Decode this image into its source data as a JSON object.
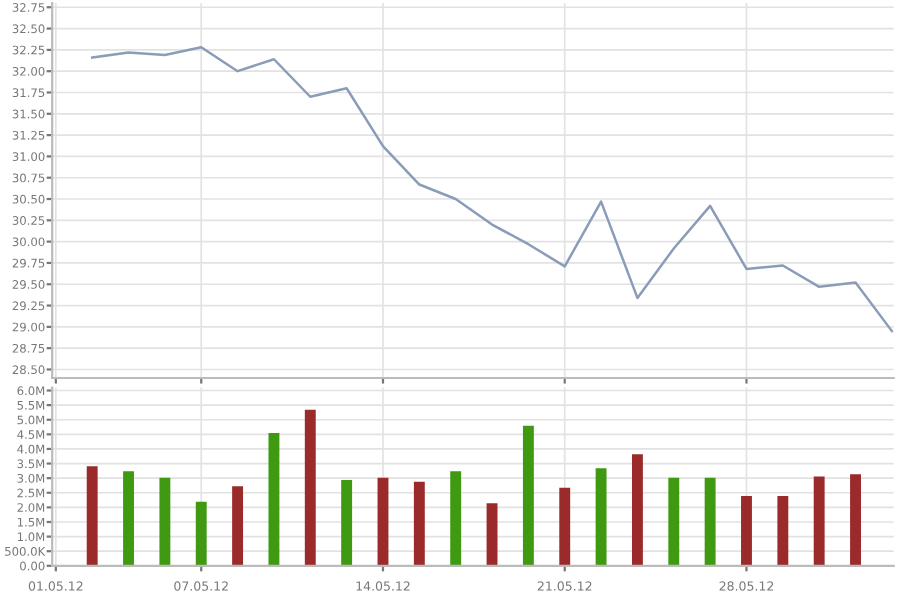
{
  "chart_data": [
    {
      "type": "line",
      "color": "#8a9cb8",
      "grid": true,
      "tick_labels": "y",
      "categories": [
        "01.05.12",
        null,
        null,
        null,
        "07.05.12",
        null,
        null,
        null,
        null,
        "14.05.12",
        null,
        null,
        null,
        null,
        "21.05.12",
        null,
        null,
        null,
        null,
        "28.05.12",
        null,
        null,
        null,
        null
      ],
      "values": [
        null,
        32.16,
        32.22,
        32.19,
        32.28,
        32.0,
        32.14,
        31.7,
        31.8,
        31.12,
        30.67,
        30.5,
        30.2,
        29.97,
        29.71,
        30.47,
        29.34,
        29.92,
        30.42,
        29.68,
        29.72,
        29.47,
        29.52,
        28.95
      ],
      "ylim": [
        28.4,
        32.8
      ],
      "yticks": [
        {
          "value": 28.5,
          "label": "28.50"
        },
        {
          "value": 28.75,
          "label": "28.75"
        },
        {
          "value": 29,
          "label": "29.00"
        },
        {
          "value": 29.25,
          "label": "29.25"
        },
        {
          "value": 29.5,
          "label": "29.50"
        },
        {
          "value": 29.75,
          "label": "29.75"
        },
        {
          "value": 30,
          "label": "30.00"
        },
        {
          "value": 30.25,
          "label": "30.25"
        },
        {
          "value": 30.5,
          "label": "30.50"
        },
        {
          "value": 30.75,
          "label": "30.75"
        },
        {
          "value": 31,
          "label": "31.00"
        },
        {
          "value": 31.25,
          "label": "31.25"
        },
        {
          "value": 31.5,
          "label": "31.50"
        },
        {
          "value": 31.75,
          "label": "31.75"
        },
        {
          "value": 32,
          "label": "32.00"
        },
        {
          "value": 32.25,
          "label": "32.25"
        },
        {
          "value": 32.5,
          "label": "32.50"
        },
        {
          "value": 32.75,
          "label": "32.75"
        }
      ]
    },
    {
      "type": "bar",
      "grid": true,
      "categories": [
        "01.05.12",
        null,
        null,
        null,
        "07.05.12",
        null,
        null,
        null,
        null,
        "14.05.12",
        null,
        null,
        null,
        null,
        "21.05.12",
        null,
        null,
        null,
        null,
        "28.05.12",
        null,
        null,
        null,
        null
      ],
      "values": [
        null,
        3410000,
        3240000,
        3010000,
        2190000,
        2720000,
        4550000,
        5340000,
        2940000,
        3010000,
        2880000,
        3240000,
        2140000,
        4790000,
        2670000,
        3340000,
        3820000,
        3010000,
        3010000,
        2390000,
        2390000,
        3060000,
        3130000,
        null
      ],
      "colors": [
        null,
        "#9b2b2b",
        "#3f9a12",
        "#3f9a12",
        "#3f9a12",
        "#9b2b2b",
        "#3f9a12",
        "#9b2b2b",
        "#3f9a12",
        "#9b2b2b",
        "#9b2b2b",
        "#3f9a12",
        "#9b2b2b",
        "#3f9a12",
        "#9b2b2b",
        "#3f9a12",
        "#9b2b2b",
        "#3f9a12",
        "#3f9a12",
        "#9b2b2b",
        "#9b2b2b",
        "#9b2b2b",
        "#9b2b2b",
        null
      ],
      "ylim": [
        0,
        6100000
      ],
      "yticks": [
        {
          "value": 0,
          "label": "0.00"
        },
        {
          "value": 500000,
          "label": "500.0K"
        },
        {
          "value": 1000000,
          "label": "1.0M"
        },
        {
          "value": 1500000,
          "label": "1.5M"
        },
        {
          "value": 2000000,
          "label": "2.0M"
        },
        {
          "value": 2500000,
          "label": "2.5M"
        },
        {
          "value": 3000000,
          "label": "3.0M"
        },
        {
          "value": 3500000,
          "label": "3.5M"
        },
        {
          "value": 4000000,
          "label": "4.0M"
        },
        {
          "value": 4500000,
          "label": "4.5M"
        },
        {
          "value": 5000000,
          "label": "5.0M"
        },
        {
          "value": 5500000,
          "label": "5.5M"
        },
        {
          "value": 6000000,
          "label": "6.0M"
        }
      ]
    }
  ]
}
